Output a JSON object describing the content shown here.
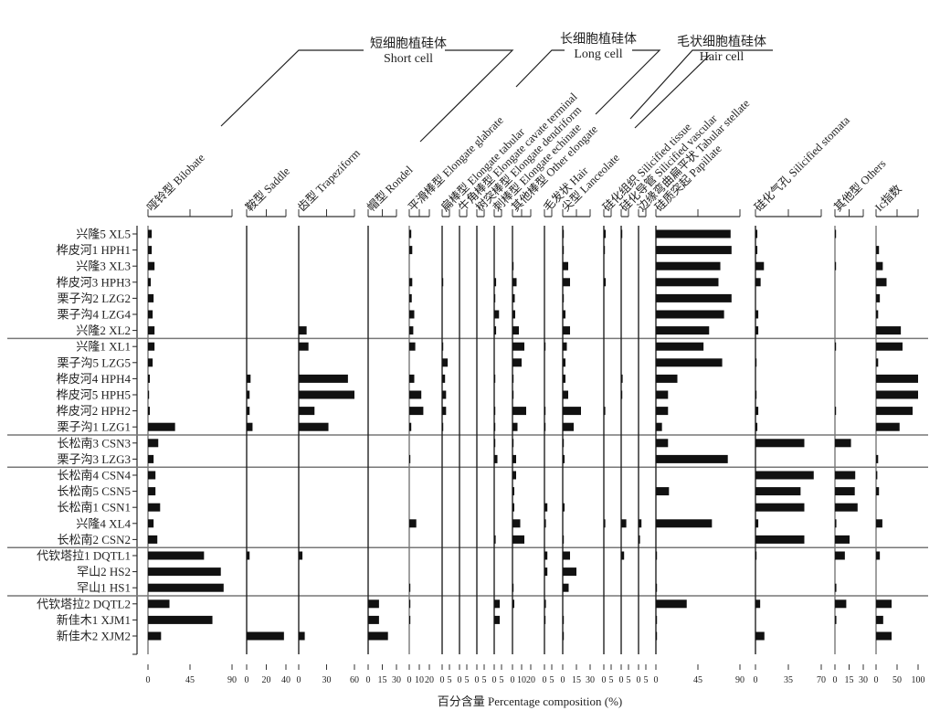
{
  "chart_data": {
    "type": "bar",
    "orientation": "horizontal",
    "xlabel": "百分含量 Percentage composition (%)",
    "categories": [
      "兴隆5 XL5",
      "桦皮河1 HPH1",
      "兴隆3 XL3",
      "桦皮河3 HPH3",
      "栗子沟2 LZG2",
      "栗子沟4 LZG4",
      "兴隆2 XL2",
      "兴隆1 XL1",
      "栗子沟5 LZG5",
      "桦皮河4 HPH4",
      "桦皮河5 HPH5",
      "桦皮河2 HPH2",
      "栗子沟1 LZG1",
      "长松南3 CSN3",
      "栗子沟3 LZG3",
      "长松南4 CSN4",
      "长松南5 CSN5",
      "长松南1 CSN1",
      "兴隆4 XL4",
      "长松南2 CSN2",
      "代钦塔拉1 DQTL1",
      "罕山2  HS2",
      "罕山1  HS1",
      "代钦塔拉2 DQTL2",
      "新佳木1 XJM1",
      "新佳木2 XJM2"
    ],
    "group_breaks_after": [
      "兴隆2 XL2",
      "栗子沟1 LZG1",
      "栗子沟3 LZG3",
      "长松南2 CSN2",
      "罕山1  HS1"
    ],
    "groups": [
      {
        "cn": "短细胞植硅体",
        "en": "Short cell"
      },
      {
        "cn": "长细胞植硅体",
        "en": "Long cell"
      },
      {
        "cn": "毛状细胞植硅体",
        "en": "Hair cell"
      }
    ],
    "bar_color": "#111111",
    "series": [
      {
        "name": "哑铃型 Bilobate",
        "xlim": [
          0,
          90
        ],
        "ticks": [
          "0",
          "45",
          "90"
        ],
        "values": [
          4,
          4,
          7,
          3,
          6,
          5,
          7,
          7,
          5,
          2,
          1,
          2,
          29,
          11,
          6,
          8,
          8,
          13,
          6,
          10,
          60,
          78,
          81,
          23,
          69,
          14
        ]
      },
      {
        "name": "鞍型 Saddle",
        "xlim": [
          0,
          40
        ],
        "ticks": [
          "0",
          "20",
          "40"
        ],
        "values": [
          0,
          0,
          0,
          0,
          0,
          0,
          0,
          0,
          0,
          4,
          3,
          3,
          6,
          0,
          0,
          0,
          0,
          0,
          0,
          0,
          3,
          0,
          0,
          0,
          0,
          38
        ]
      },
      {
        "name": "齿型 Trapeziform",
        "xlim": [
          0,
          60
        ],
        "ticks": [
          "0",
          "30",
          "60"
        ],
        "values": [
          0,
          0,
          0,
          0,
          0,
          0,
          8.5,
          10.5,
          0,
          53,
          60,
          17,
          32,
          0,
          0,
          0,
          0,
          0,
          0,
          0,
          4,
          0,
          0,
          0,
          0,
          6.5
        ]
      },
      {
        "name": "帽型 Rondel",
        "xlim": [
          0,
          30
        ],
        "ticks": [
          "0",
          "15",
          "30"
        ],
        "values": [
          0,
          0,
          0,
          0,
          0,
          0,
          0,
          0,
          0,
          0,
          0,
          0,
          0,
          0,
          0,
          0,
          0,
          0,
          0,
          0,
          0,
          0,
          0,
          11.5,
          11.5,
          21
        ]
      },
      {
        "name": "平滑棒型 Elongate glabrate",
        "xlim": [
          0,
          20
        ],
        "ticks": [
          "0",
          "10",
          "20"
        ],
        "values": [
          2,
          3,
          0,
          3,
          2.5,
          5,
          4,
          6,
          0,
          5,
          12,
          14,
          2,
          0,
          0.5,
          0,
          0,
          0,
          7,
          0,
          0,
          0,
          1,
          0.5,
          1,
          0
        ]
      },
      {
        "name": "扁棒型 Elongate tabular",
        "xlim": [
          0,
          5
        ],
        "ticks": [
          "0",
          "5"
        ],
        "values": [
          0,
          0,
          0,
          0.5,
          0,
          0,
          0,
          0.5,
          3.8,
          2,
          2.7,
          2.7,
          0.5,
          0,
          0,
          0,
          0,
          0,
          0,
          0,
          0,
          0,
          0,
          0,
          0,
          0
        ]
      },
      {
        "name": "牛角棒型 Elongate cavate terminal",
        "xlim": [
          0,
          5
        ],
        "ticks": [
          "0",
          "5"
        ],
        "values": [
          0,
          0,
          0,
          0,
          0,
          0,
          0,
          0,
          0,
          0,
          0,
          0,
          0,
          0,
          0,
          0,
          0,
          0,
          0,
          0,
          0,
          0,
          0,
          0,
          0,
          0
        ]
      },
      {
        "name": "树突棒型 Elongate dendriform",
        "xlim": [
          0,
          5
        ],
        "ticks": [
          "0",
          "5"
        ],
        "values": [
          0,
          0,
          0,
          0,
          0,
          0,
          0,
          0,
          0,
          0,
          0,
          0,
          0,
          0,
          0,
          0,
          0,
          0,
          0,
          0,
          0,
          0,
          0,
          0,
          0,
          0
        ]
      },
      {
        "name": "刺棒型 Elongate echinate",
        "xlim": [
          0,
          5
        ],
        "ticks": [
          "0",
          "5"
        ],
        "values": [
          0,
          0,
          0,
          1.3,
          0.5,
          3.3,
          1.3,
          0,
          0,
          0.5,
          0,
          0.5,
          0.5,
          0.5,
          2.2,
          0,
          0,
          0,
          0,
          1,
          0,
          0,
          0,
          3.8,
          3.8,
          0
        ]
      },
      {
        "name": "其他棒型 Other elongate",
        "xlim": [
          0,
          20
        ],
        "ticks": [
          "0",
          "10",
          "20"
        ],
        "values": [
          0,
          0,
          0.5,
          4.5,
          2.5,
          3,
          7,
          13,
          10,
          1,
          1,
          15,
          5.5,
          0.5,
          4,
          4,
          2,
          2,
          8.5,
          13,
          0,
          0,
          1,
          2,
          0,
          0
        ]
      },
      {
        "name": "毛发状 Hair",
        "xlim": [
          0,
          5
        ],
        "ticks": [
          "0",
          "5"
        ],
        "values": [
          0,
          0,
          0,
          0,
          0,
          0,
          0,
          0.5,
          0,
          0,
          0,
          0.5,
          0.5,
          0,
          0,
          0,
          0,
          2,
          1,
          0,
          2,
          2,
          0,
          1,
          0.5,
          0
        ]
      },
      {
        "name": "尖型 Lanceolate",
        "xlim": [
          0,
          30
        ],
        "ticks": [
          "0",
          "15",
          "30"
        ],
        "values": [
          0.5,
          0.5,
          6,
          8,
          0.5,
          3,
          8,
          4.5,
          3,
          3,
          6,
          20,
          12,
          0.5,
          2,
          0,
          0,
          2,
          0,
          0.5,
          8,
          15,
          6.5,
          0,
          1,
          1
        ]
      },
      {
        "name": "硅化组织 Silicified tissue",
        "xlim": [
          0,
          5
        ],
        "ticks": [
          "0",
          "5"
        ],
        "values": [
          1.3,
          0.5,
          0,
          1.3,
          0,
          0,
          0,
          0,
          0,
          0,
          0,
          1,
          0,
          0,
          0,
          0,
          0,
          0,
          1,
          0,
          0,
          0,
          0,
          0,
          0,
          0
        ]
      },
      {
        "name": "硅化导管 Silicified vascular",
        "xlim": [
          0,
          5
        ],
        "ticks": [
          "0",
          "5"
        ],
        "values": [
          0.5,
          0,
          0,
          0,
          0,
          0,
          0,
          0,
          0,
          1,
          0.5,
          0,
          0,
          0,
          0,
          0,
          0,
          0,
          3.5,
          0,
          2,
          0,
          0,
          0,
          0,
          0
        ]
      },
      {
        "name": "边缘弯曲扁平状 Tabular stellate",
        "xlim": [
          0,
          5
        ],
        "ticks": [
          "0",
          "5"
        ],
        "values": [
          0,
          0,
          0,
          0,
          0,
          0,
          0,
          0,
          0,
          0,
          0,
          0,
          0,
          0,
          0,
          0,
          0,
          0,
          2,
          1,
          0,
          0,
          0,
          0,
          0,
          0
        ]
      },
      {
        "name": "硅质突起 Papillate",
        "xlim": [
          0,
          90
        ],
        "ticks": [
          "0",
          "45",
          "90"
        ],
        "values": [
          80,
          81,
          69,
          67,
          81,
          73,
          57,
          51,
          71,
          23,
          13,
          13,
          6.5,
          13,
          77,
          0,
          14,
          0,
          60,
          0,
          1,
          0,
          1,
          33,
          1,
          1
        ]
      },
      {
        "name": "硅化气孔 Silicified stomata",
        "xlim": [
          0,
          70
        ],
        "ticks": [
          "0",
          "35",
          "70"
        ],
        "values": [
          2,
          2,
          9,
          5.5,
          0,
          3,
          3,
          0,
          1,
          0,
          1,
          3,
          2,
          52,
          0,
          62,
          48,
          52,
          3,
          52,
          1,
          0,
          0,
          5,
          0,
          9.5
        ]
      },
      {
        "name": "其他型 Others",
        "xlim": [
          0,
          30
        ],
        "ticks": [
          "0",
          "15",
          "30"
        ],
        "values": [
          1,
          0,
          1,
          0,
          0,
          0,
          0,
          1,
          0,
          0,
          0,
          1,
          0,
          17,
          0,
          21.5,
          21,
          24,
          1.5,
          15.5,
          10.5,
          0,
          1.5,
          12,
          1.5,
          0
        ]
      },
      {
        "name": "Ic指数",
        "xlim": [
          0,
          100
        ],
        "ticks": [
          "0",
          "50",
          "100"
        ],
        "values": [
          0,
          7,
          16,
          25,
          9,
          5,
          59,
          63,
          5,
          100,
          100,
          87,
          56,
          0,
          5,
          3,
          7,
          0,
          15,
          0,
          9,
          0,
          0,
          37,
          17,
          37
        ]
      }
    ]
  }
}
